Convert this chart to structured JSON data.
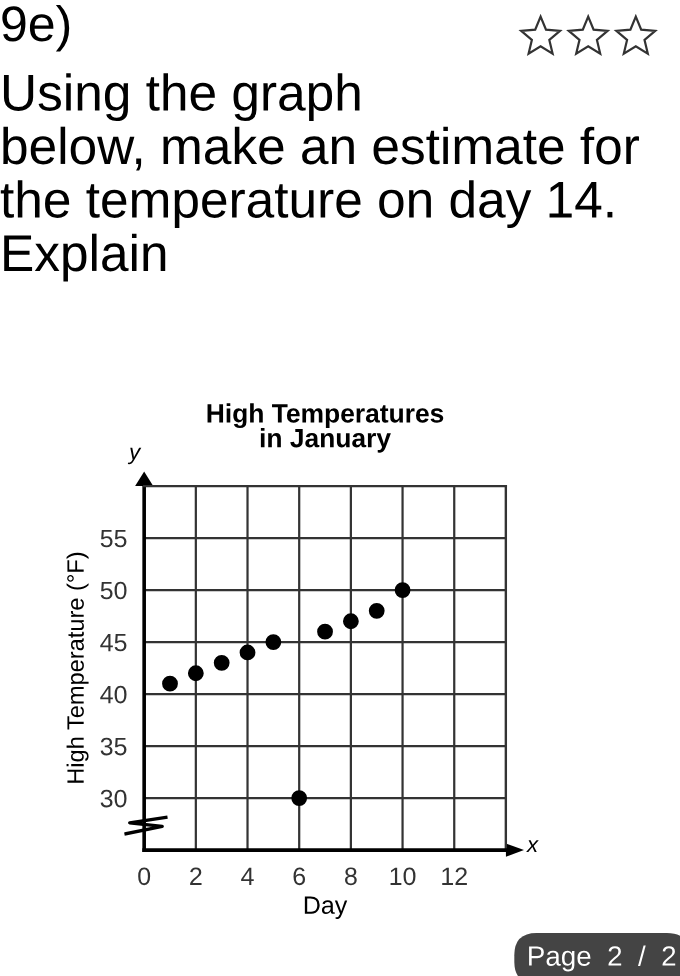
{
  "chart_data": {
    "type": "scatter",
    "title": "High Temperatures\nin January",
    "xlabel": "Day",
    "ylabel": "High Temperature (°F)",
    "annotations": [
      "9e)",
      "Using the graph\nbelow, make an estimate for\nthe temperature on day 14.\nExplain",
      "x",
      "y",
      "Page  2  /  2"
    ],
    "x": [
      1,
      2,
      3,
      4,
      5,
      6,
      7,
      8,
      9,
      10
    ],
    "series": [
      {
        "color": "#000000",
        "values": [
          41,
          42,
          43,
          44,
          45,
          30,
          46,
          47,
          48,
          50
        ]
      }
    ],
    "xlim": [
      0,
      14
    ],
    "ylim": [
      25,
      60
    ],
    "xticks": [
      0,
      2,
      4,
      6,
      8,
      10,
      12,
      {
        "value": 14,
        "label": null
      }
    ],
    "yticks": [
      30,
      35,
      40,
      45,
      50,
      55
    ],
    "grid": true,
    "marker": "circle"
  }
}
